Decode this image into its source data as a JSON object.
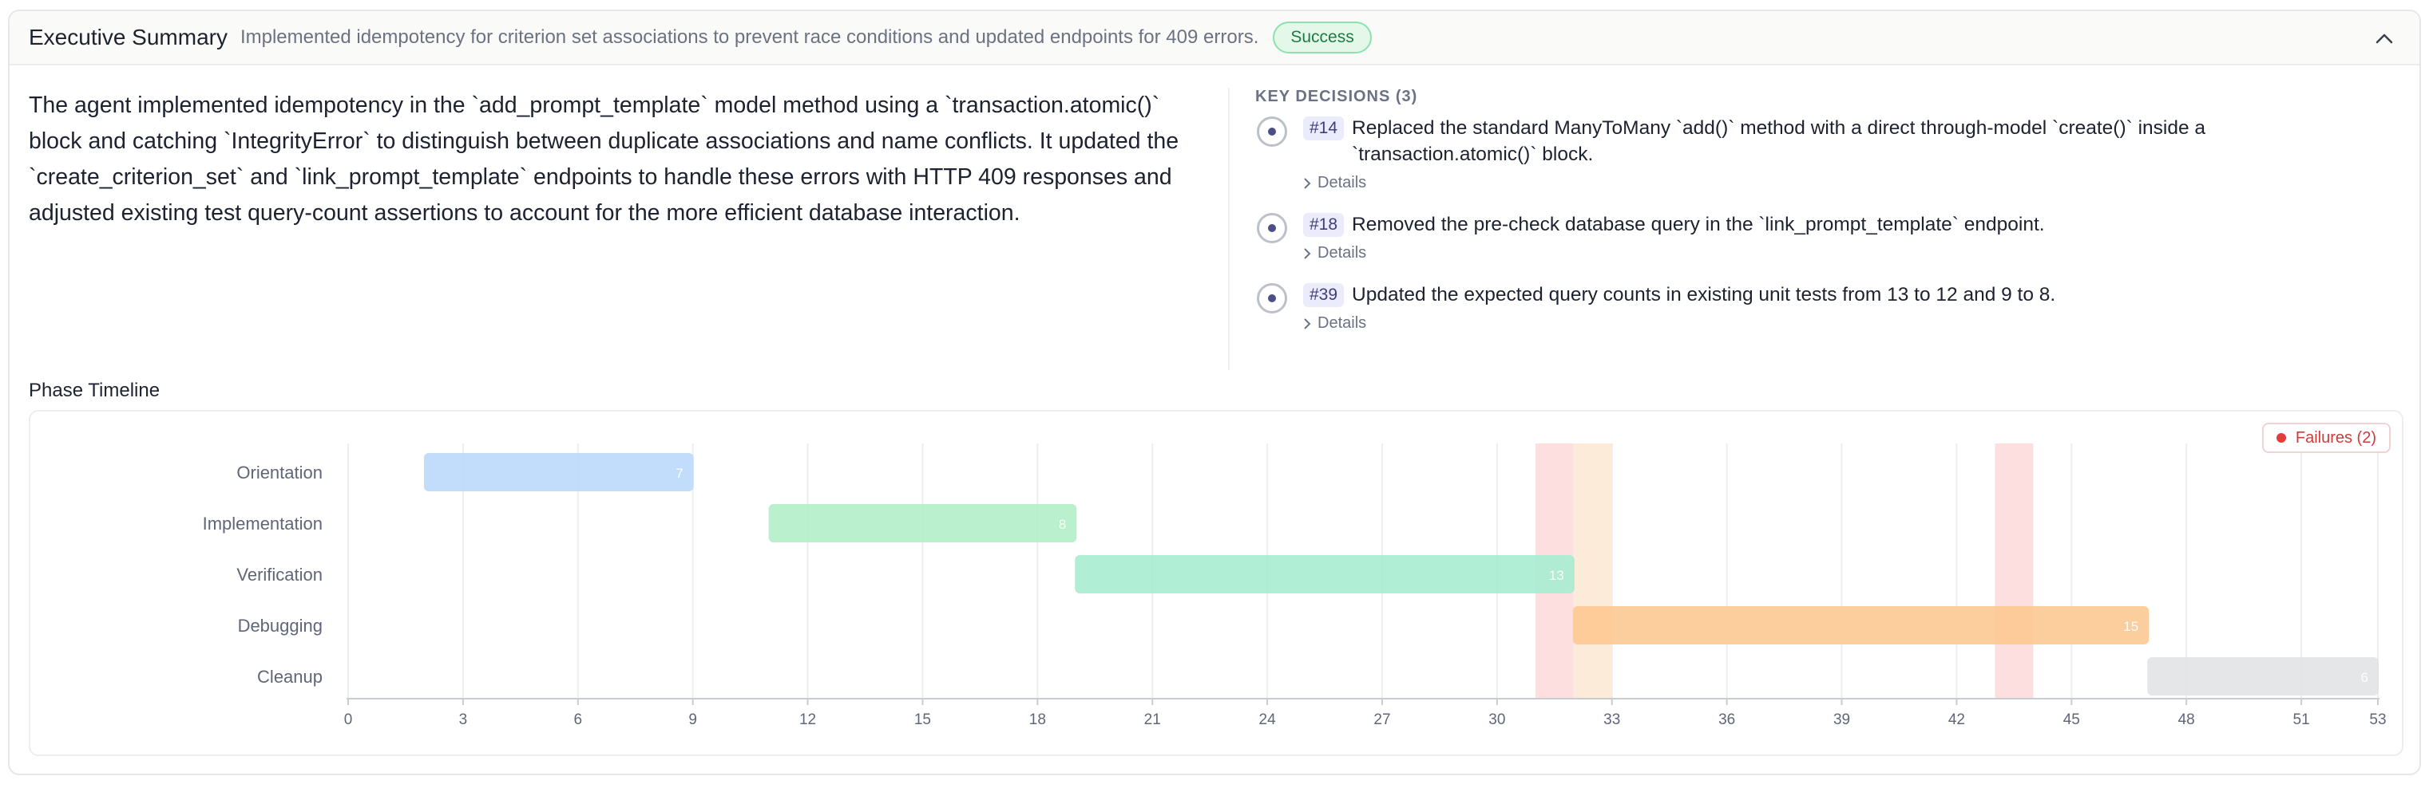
{
  "header": {
    "title": "Executive Summary",
    "subtitle": "Implemented idempotency for criterion set associations to prevent race conditions and updated endpoints for 409 errors.",
    "status": "Success"
  },
  "summary": "The agent implemented idempotency in the `add_prompt_template` model method using a `transaction.atomic()` block and catching `IntegrityError` to distinguish between duplicate associations and name conflicts. It updated the `create_criterion_set` and `link_prompt_template` endpoints to handle these errors with HTTP 409 responses and adjusted existing test query-count assertions to account for the more efficient database interaction.",
  "key_decisions": {
    "title": "KEY DECISIONS (3)",
    "details_label": "Details",
    "items": [
      {
        "id": "#14",
        "text": "Replaced the standard ManyToMany `add()` method with a direct through-model `create()` inside a `transaction.atomic()` block."
      },
      {
        "id": "#18",
        "text": "Removed the pre-check database query in the `link_prompt_template` endpoint."
      },
      {
        "id": "#39",
        "text": "Updated the expected query counts in existing unit tests from 13 to 12 and 9 to 8."
      }
    ]
  },
  "timeline": {
    "label": "Phase Timeline",
    "failures_label": "Failures (2)"
  },
  "chart_data": {
    "type": "bar",
    "orientation": "horizontal-range",
    "categories": [
      "Orientation",
      "Implementation",
      "Verification",
      "Debugging",
      "Cleanup"
    ],
    "series": [
      {
        "start": 2,
        "end": 9,
        "value": 7,
        "color": "#bcdafb"
      },
      {
        "start": 11,
        "end": 19,
        "value": 8,
        "color": "#b3efc8"
      },
      {
        "start": 19,
        "end": 32,
        "value": 13,
        "color": "#a8edd2"
      },
      {
        "start": 32,
        "end": 47,
        "value": 15,
        "color": "#fdc993"
      },
      {
        "start": 47,
        "end": 53,
        "value": 6,
        "color": "#e3e4e6"
      }
    ],
    "x_ticks": [
      0,
      3,
      6,
      9,
      12,
      15,
      18,
      21,
      24,
      27,
      30,
      33,
      36,
      39,
      42,
      45,
      48,
      51,
      53
    ],
    "xlim": [
      0,
      53
    ],
    "grid": true,
    "highlights": [
      {
        "start": 31,
        "end": 32,
        "color": "#fdd9d9"
      },
      {
        "start": 32,
        "end": 33,
        "color": "#fde8d4"
      },
      {
        "start": 43,
        "end": 44,
        "color": "#fdd9d9"
      }
    ],
    "legend": "top-right"
  }
}
